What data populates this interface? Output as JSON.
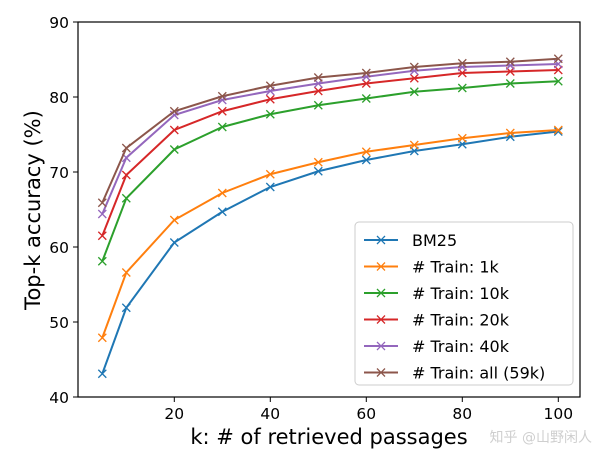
{
  "chart_data": {
    "type": "line",
    "title": "",
    "xlabel": "k: # of retrieved passages",
    "ylabel": "Top-k accuracy (%)",
    "xlim": [
      0,
      104
    ],
    "ylim": [
      40,
      90
    ],
    "xticks": [
      20,
      40,
      60,
      80,
      100
    ],
    "yticks": [
      40,
      50,
      60,
      70,
      80,
      90
    ],
    "grid": false,
    "legend_position": "bottom-right",
    "marker": "x",
    "x": [
      5,
      10,
      20,
      30,
      40,
      50,
      60,
      70,
      80,
      90,
      100
    ],
    "series": [
      {
        "name": "BM25",
        "color": "#1f77b4",
        "values": [
          43.1,
          51.9,
          60.6,
          64.7,
          68.0,
          70.1,
          71.6,
          72.8,
          73.7,
          74.7,
          75.4
        ]
      },
      {
        "name": "# Train: 1k",
        "color": "#ff7f0e",
        "values": [
          47.9,
          56.6,
          63.6,
          67.2,
          69.7,
          71.3,
          72.7,
          73.6,
          74.5,
          75.2,
          75.6
        ]
      },
      {
        "name": "# Train: 10k",
        "color": "#2ca02c",
        "values": [
          58.1,
          66.5,
          73.0,
          76.0,
          77.7,
          78.9,
          79.8,
          80.7,
          81.2,
          81.8,
          82.1
        ]
      },
      {
        "name": "# Train: 20k",
        "color": "#d62728",
        "values": [
          61.5,
          69.6,
          75.6,
          78.1,
          79.7,
          80.8,
          81.8,
          82.5,
          83.2,
          83.4,
          83.6
        ]
      },
      {
        "name": "# Train: 40k",
        "color": "#9467bd",
        "values": [
          64.4,
          71.9,
          77.6,
          79.6,
          80.8,
          81.8,
          82.7,
          83.5,
          84.0,
          84.2,
          84.4
        ]
      },
      {
        "name": "# Train: all (59k)",
        "color": "#8c564b",
        "values": [
          65.9,
          73.2,
          78.1,
          80.1,
          81.5,
          82.6,
          83.2,
          84.0,
          84.5,
          84.7,
          85.1
        ]
      }
    ]
  },
  "watermark": "知乎 @山野闲人"
}
